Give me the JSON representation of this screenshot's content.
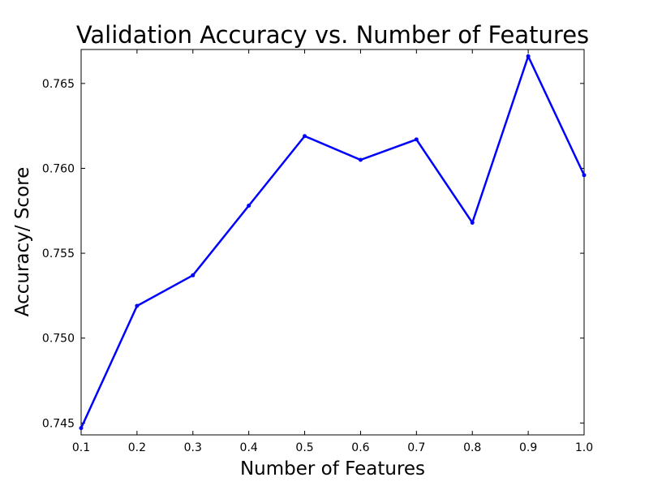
{
  "chart_data": {
    "type": "line",
    "title": "Validation Accuracy vs. Number of Features",
    "xlabel": "Number of Features",
    "ylabel": "Accuracy/ Score",
    "xlim": [
      0.1,
      1.0
    ],
    "ylim": [
      0.7443,
      0.767
    ],
    "x_ticks": [
      0.1,
      0.2,
      0.3,
      0.4,
      0.5,
      0.6,
      0.7,
      0.8,
      0.9,
      1.0
    ],
    "x_tick_labels": [
      "0.1",
      "0.2",
      "0.3",
      "0.4",
      "0.5",
      "0.6",
      "0.7",
      "0.8",
      "0.9",
      "1.0"
    ],
    "y_ticks": [
      0.745,
      0.75,
      0.755,
      0.76,
      0.765
    ],
    "y_tick_labels": [
      "0.745",
      "0.750",
      "0.755",
      "0.760",
      "0.765"
    ],
    "grid": false,
    "legend": "none",
    "series": [
      {
        "color": "#0000ff",
        "x": [
          0.1,
          0.2,
          0.3,
          0.4,
          0.5,
          0.6,
          0.7,
          0.8,
          0.9,
          1.0
        ],
        "values": [
          0.7447,
          0.7519,
          0.7537,
          0.7578,
          0.7619,
          0.7605,
          0.7617,
          0.7568,
          0.7666,
          0.7596
        ]
      }
    ]
  }
}
